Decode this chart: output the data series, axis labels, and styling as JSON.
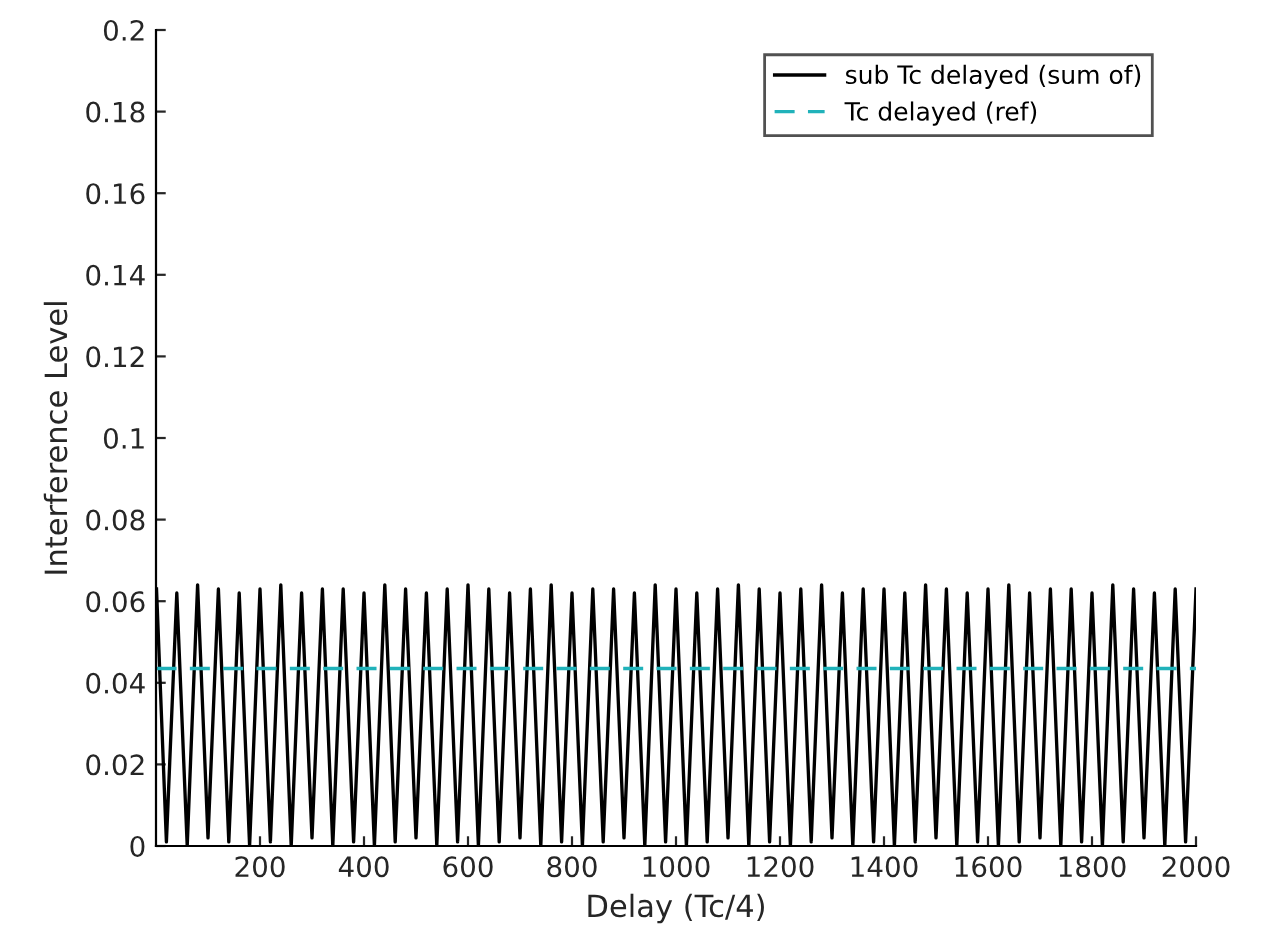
{
  "chart_data": {
    "type": "line",
    "xlabel": "Delay (Tc/4)",
    "ylabel": "Interference Level",
    "xlim": [
      0,
      2000
    ],
    "xticks": [
      200,
      400,
      600,
      800,
      1000,
      1200,
      1400,
      1600,
      1800,
      2000
    ],
    "ylim": [
      0,
      0.2
    ],
    "yticks": [
      0,
      0.02,
      0.04,
      0.06,
      0.08,
      0.1,
      0.12,
      0.14,
      0.16,
      0.18,
      0.2
    ],
    "grid": false,
    "legend": "top right",
    "series": [
      {
        "name": "sub Tc delayed (sum of)",
        "color": "#000000",
        "line_style": "solid",
        "x": [
          1,
          20,
          40,
          60,
          80,
          100,
          120,
          140,
          160,
          180,
          200,
          220,
          240,
          260,
          280,
          300,
          320,
          340,
          360,
          380,
          400,
          420,
          440,
          460,
          480,
          500,
          520,
          540,
          560,
          580,
          600,
          620,
          640,
          660,
          680,
          700,
          720,
          740,
          760,
          780,
          800,
          820,
          840,
          860,
          880,
          900,
          920,
          940,
          960,
          980,
          1000,
          1020,
          1040,
          1060,
          1080,
          1100,
          1120,
          1140,
          1160,
          1180,
          1200,
          1220,
          1240,
          1260,
          1280,
          1300,
          1320,
          1340,
          1360,
          1380,
          1400,
          1420,
          1440,
          1460,
          1480,
          1500,
          1520,
          1540,
          1560,
          1580,
          1600,
          1620,
          1640,
          1660,
          1680,
          1700,
          1720,
          1740,
          1760,
          1780,
          1800,
          1820,
          1840,
          1860,
          1880,
          1900,
          1920,
          1940,
          1960,
          1980,
          2000
        ],
        "values": [
          0.063,
          0.001,
          0.062,
          0.0,
          0.064,
          0.002,
          0.063,
          0.001,
          0.062,
          0.0,
          0.063,
          0.001,
          0.064,
          0.0,
          0.062,
          0.002,
          0.063,
          0.0,
          0.063,
          0.001,
          0.062,
          0.0,
          0.064,
          0.001,
          0.063,
          0.002,
          0.062,
          0.0,
          0.063,
          0.001,
          0.064,
          0.0,
          0.063,
          0.001,
          0.062,
          0.002,
          0.063,
          0.0,
          0.064,
          0.001,
          0.062,
          0.0,
          0.063,
          0.001,
          0.063,
          0.002,
          0.062,
          0.0,
          0.064,
          0.001,
          0.063,
          0.0,
          0.062,
          0.001,
          0.063,
          0.002,
          0.064,
          0.0,
          0.063,
          0.001,
          0.062,
          0.0,
          0.063,
          0.001,
          0.064,
          0.002,
          0.062,
          0.0,
          0.063,
          0.001,
          0.063,
          0.0,
          0.062,
          0.001,
          0.064,
          0.002,
          0.063,
          0.0,
          0.062,
          0.001,
          0.063,
          0.0,
          0.064,
          0.001,
          0.062,
          0.002,
          0.063,
          0.0,
          0.063,
          0.001,
          0.062,
          0.0,
          0.064,
          0.001,
          0.063,
          0.002,
          0.062,
          0.0,
          0.063,
          0.001,
          0.063
        ]
      },
      {
        "name": "Tc delayed (ref)",
        "color": "#20b2ba",
        "line_style": "dashed",
        "x": [
          1,
          2000
        ],
        "values": [
          0.0435,
          0.0435
        ]
      }
    ]
  }
}
